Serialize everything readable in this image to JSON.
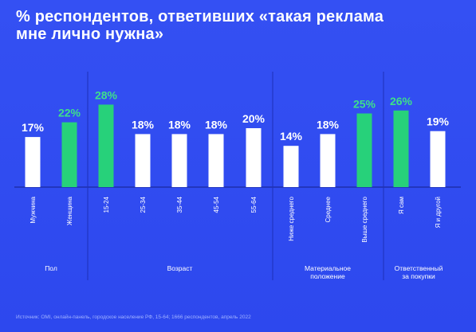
{
  "title_line1": "% респондентов, ответивших «такая реклама",
  "title_line2": "мне лично нужна»",
  "source": "Источник: OMI, онлайн-панель, городское население РФ, 15-64; 1666 респондентов, апрель 2022",
  "colors": {
    "background": "#2f4bf0",
    "bar_default": "#ffffff",
    "bar_highlight": "#27d17a",
    "label_default": "#ffffff",
    "label_highlight": "#3ee08a"
  },
  "chart_data": {
    "type": "bar",
    "unit": "%",
    "ylim": [
      0,
      30
    ],
    "categories": [
      "Мужчина",
      "Женщина",
      "15-24",
      "25-34",
      "35-44",
      "45-54",
      "55-64",
      "Ниже среднего",
      "Среднее",
      "Выше среднего",
      "Я сам",
      "Я и другой"
    ],
    "values": [
      17,
      22,
      28,
      18,
      18,
      18,
      20,
      14,
      18,
      25,
      26,
      19
    ],
    "value_labels": [
      "17%",
      "22%",
      "28%",
      "18%",
      "18%",
      "18%",
      "20%",
      "14%",
      "18%",
      "25%",
      "26%",
      "19%"
    ],
    "highlighted": [
      false,
      true,
      true,
      false,
      false,
      false,
      false,
      false,
      false,
      true,
      true,
      false
    ],
    "groups": [
      {
        "label": [
          "Пол"
        ],
        "count": 2
      },
      {
        "label": [
          "Возраст"
        ],
        "count": 5
      },
      {
        "label": [
          "Материальное",
          "положение"
        ],
        "count": 3
      },
      {
        "label": [
          "Ответственный",
          "за покупки"
        ],
        "count": 2
      }
    ]
  }
}
